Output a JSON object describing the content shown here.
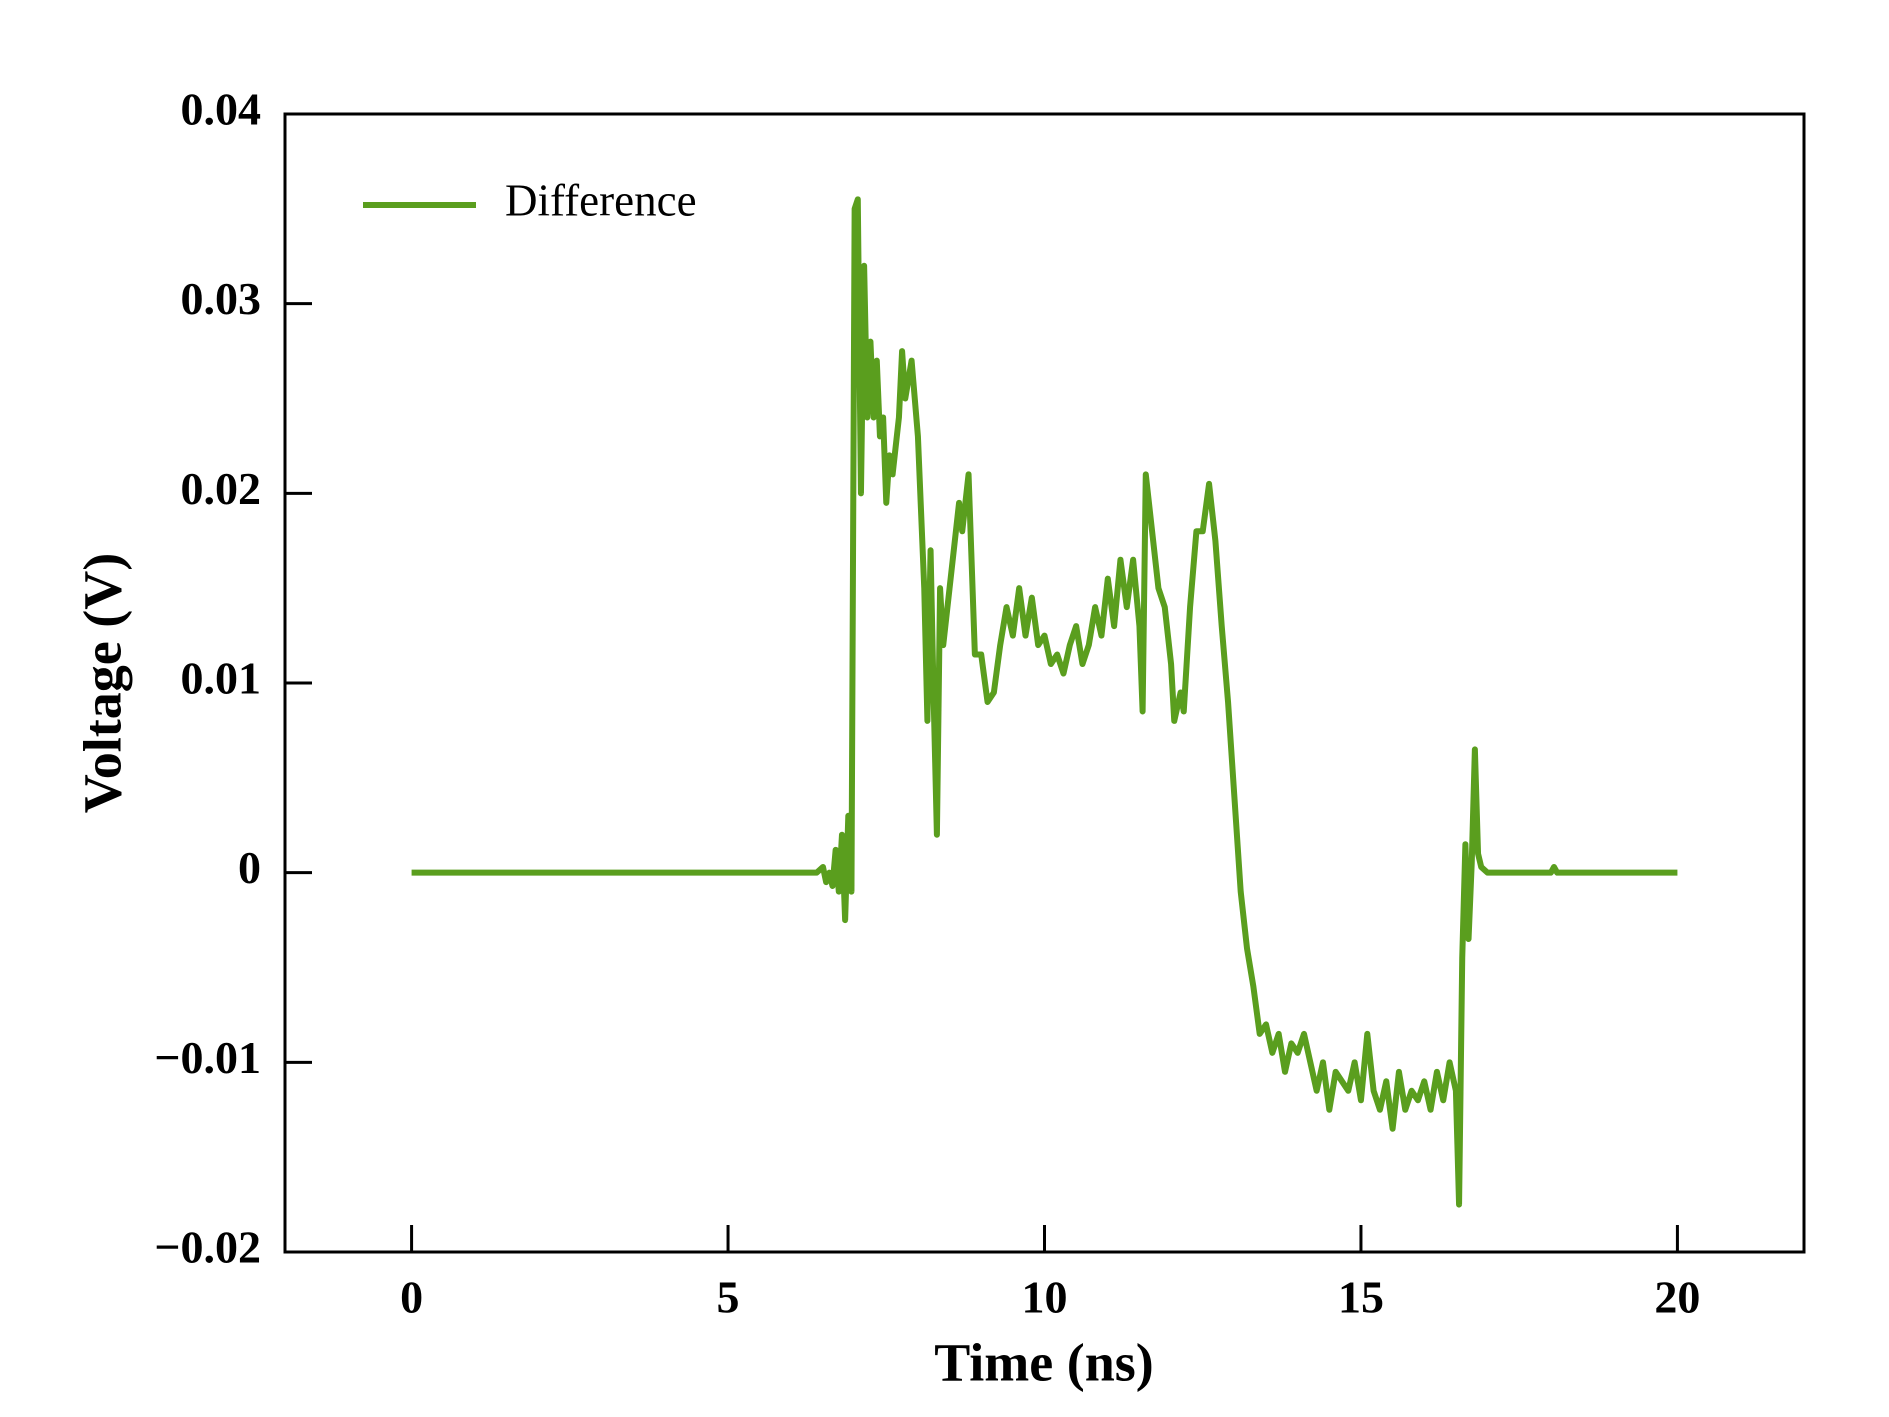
{
  "chart_data": {
    "type": "line",
    "xlabel": "Time (ns)",
    "ylabel": "Voltage (V)",
    "x": [
      0,
      6.4,
      6.5,
      6.55,
      6.6,
      6.65,
      6.7,
      6.75,
      6.8,
      6.85,
      6.9,
      6.95,
      7.0,
      7.05,
      7.1,
      7.15,
      7.2,
      7.25,
      7.3,
      7.35,
      7.4,
      7.45,
      7.5,
      7.55,
      7.6,
      7.7,
      7.75,
      7.8,
      7.9,
      8.0,
      8.1,
      8.15,
      8.2,
      8.25,
      8.3,
      8.35,
      8.4,
      8.5,
      8.6,
      8.65,
      8.7,
      8.8,
      8.9,
      9.0,
      9.1,
      9.2,
      9.3,
      9.4,
      9.5,
      9.6,
      9.7,
      9.8,
      9.9,
      10.0,
      10.1,
      10.2,
      10.3,
      10.4,
      10.5,
      10.6,
      10.7,
      10.8,
      10.9,
      11.0,
      11.1,
      11.2,
      11.3,
      11.4,
      11.5,
      11.55,
      11.6,
      11.7,
      11.8,
      11.9,
      12.0,
      12.05,
      12.15,
      12.2,
      12.3,
      12.4,
      12.5,
      12.6,
      12.7,
      12.8,
      12.9,
      13.0,
      13.1,
      13.2,
      13.3,
      13.4,
      13.5,
      13.6,
      13.7,
      13.8,
      13.9,
      14.0,
      14.1,
      14.2,
      14.3,
      14.4,
      14.5,
      14.6,
      14.7,
      14.8,
      14.9,
      15.0,
      15.1,
      15.2,
      15.3,
      15.4,
      15.5,
      15.6,
      15.7,
      15.8,
      15.9,
      16.0,
      16.1,
      16.2,
      16.3,
      16.4,
      16.5,
      16.55,
      16.6,
      16.65,
      16.7,
      16.75,
      16.8,
      16.85,
      16.9,
      17.0,
      18.0,
      18.05,
      18.1,
      20
    ],
    "series": [
      {
        "name": "Difference",
        "color": "#5a9e1e",
        "values": [
          0,
          0,
          0.0003,
          -0.0005,
          0,
          -0.0007,
          0.0012,
          -0.001,
          0.002,
          -0.0025,
          0.003,
          -0.001,
          0.035,
          0.0355,
          0.02,
          0.032,
          0.024,
          0.028,
          0.024,
          0.027,
          0.023,
          0.024,
          0.0195,
          0.022,
          0.021,
          0.024,
          0.0275,
          0.025,
          0.027,
          0.023,
          0.015,
          0.008,
          0.017,
          0.009,
          0.002,
          0.015,
          0.012,
          0.015,
          0.018,
          0.0195,
          0.018,
          0.021,
          0.0115,
          0.0115,
          0.009,
          0.0095,
          0.012,
          0.014,
          0.0125,
          0.015,
          0.0125,
          0.0145,
          0.012,
          0.0125,
          0.011,
          0.0115,
          0.0105,
          0.012,
          0.013,
          0.011,
          0.012,
          0.014,
          0.0125,
          0.0155,
          0.013,
          0.0165,
          0.014,
          0.0165,
          0.013,
          0.0085,
          0.021,
          0.018,
          0.015,
          0.014,
          0.011,
          0.008,
          0.0095,
          0.0085,
          0.014,
          0.018,
          0.018,
          0.0205,
          0.0175,
          0.013,
          0.009,
          0.004,
          -0.001,
          -0.004,
          -0.006,
          -0.0085,
          -0.008,
          -0.0095,
          -0.0085,
          -0.0105,
          -0.009,
          -0.0095,
          -0.0085,
          -0.01,
          -0.0115,
          -0.01,
          -0.0125,
          -0.0105,
          -0.011,
          -0.0115,
          -0.01,
          -0.012,
          -0.0085,
          -0.0115,
          -0.0125,
          -0.011,
          -0.0135,
          -0.0105,
          -0.0125,
          -0.0115,
          -0.012,
          -0.011,
          -0.0125,
          -0.0105,
          -0.012,
          -0.01,
          -0.0115,
          -0.0175,
          -0.0045,
          0.0015,
          -0.0035,
          0.0005,
          0.0065,
          0.001,
          0.0003,
          0,
          0,
          0.0003,
          0,
          0
        ]
      }
    ],
    "xlim": [
      -2,
      22
    ],
    "xticks": [
      0,
      5,
      10,
      15,
      20
    ],
    "ylim": [
      -0.02,
      0.04
    ],
    "yticks": [
      {
        "value": -0.02,
        "label": "−0.02"
      },
      {
        "value": -0.01,
        "label": "−0.01"
      },
      0,
      0.01,
      0.02,
      0.03,
      0.04
    ],
    "legend": "upper left",
    "grid": false
  }
}
